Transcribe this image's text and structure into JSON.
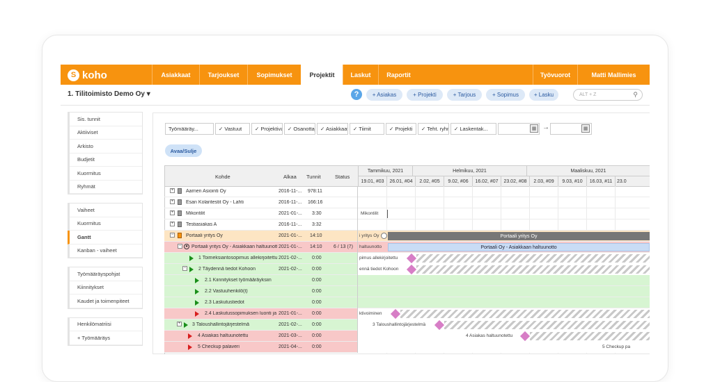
{
  "brand": {
    "name": "koho"
  },
  "nav": {
    "tabs": [
      {
        "label": "Asiakkaat"
      },
      {
        "label": "Tarjoukset"
      },
      {
        "label": "Sopimukset"
      },
      {
        "label": "Projektit"
      },
      {
        "label": "Laskut"
      },
      {
        "label": "Raportit"
      },
      {
        "label": "Työvuorot"
      },
      {
        "label": "Matti Mallimies"
      }
    ]
  },
  "subbar": {
    "company": "1. Tilitoimisto Demo Oy ▾",
    "help": "?",
    "quick": [
      {
        "label": "+ Asiakas"
      },
      {
        "label": "+ Projekti"
      },
      {
        "label": "+ Tarjous"
      },
      {
        "label": "+ Sopimus"
      },
      {
        "label": "+ Lasku"
      }
    ],
    "search_placeholder": "ALT + Z"
  },
  "sidebar": {
    "groups": [
      {
        "items": [
          {
            "label": "Sis. tunnit"
          },
          {
            "label": "Aktiiviset"
          },
          {
            "label": "Arkisto"
          },
          {
            "label": "Budjetit"
          },
          {
            "label": "Kuormitus"
          },
          {
            "label": "Ryhmät"
          }
        ]
      },
      {
        "items": [
          {
            "label": "Vaiheet"
          },
          {
            "label": "Kuormitus"
          },
          {
            "label": "Gantt",
            "active": true
          },
          {
            "label": "Kanban - vaiheet"
          }
        ]
      },
      {
        "items": [
          {
            "label": "Työmääräyspohjat"
          },
          {
            "label": "Kiinnitykset"
          },
          {
            "label": "Kaudet ja toimenpiteet"
          }
        ]
      },
      {
        "items": [
          {
            "label": "Henkilömatriisi"
          },
          {
            "label": "+ Työmääräys"
          }
        ]
      }
    ]
  },
  "filters": {
    "items": [
      {
        "label": "Työmääräy..."
      },
      {
        "label": "✓ Vastuut"
      },
      {
        "label": "✓ Projektivas..."
      },
      {
        "label": "✓ Osanottaja..."
      },
      {
        "label": "✓ Asiakkaat"
      },
      {
        "label": "✓ Tiimit"
      },
      {
        "label": "✓ Projekti"
      },
      {
        "label": "✓ Teht. ryhm..."
      },
      {
        "label": "✓ Laskentak..."
      }
    ],
    "arrow": "→",
    "toggle": "Avaa/Sulje"
  },
  "grid": {
    "columns": {
      "kohde": "Kohde",
      "alkaa": "Alkaa",
      "tunnit": "Tunnit",
      "status": "Status"
    },
    "months": [
      {
        "label": "Tammikuu, 2021"
      },
      {
        "label": "Helmikuu, 2021"
      },
      {
        "label": "Maaliskuu, 2021"
      }
    ],
    "weeks": [
      "19.01, #03",
      "26.01, #04",
      "2.02, #05",
      "9.02, #06",
      "16.02, #07",
      "23.02, #08",
      "2.03, #09",
      "9.03, #10",
      "16.03, #11",
      "23.0"
    ],
    "rows": [
      {
        "kohde": "Aarnen Asiointi Oy",
        "alkaa": "2016-11-...",
        "tunnit": "978:11",
        "status": ""
      },
      {
        "kohde": "Esan Kolaritestit Oy - Lahti",
        "alkaa": "2016-11-...",
        "tunnit": "166:16",
        "status": ""
      },
      {
        "kohde": "Mikontilit",
        "alkaa": "2021-01-...",
        "tunnit": "3:30",
        "status": "",
        "glabel": "Mikontilit"
      },
      {
        "kohde": "Testiasiakas A",
        "alkaa": "2016-11-...",
        "tunnit": "3:32",
        "status": ""
      },
      {
        "kohde": "Portaali yritys Oy",
        "alkaa": "2021-01-...",
        "tunnit": "14:10",
        "status": "",
        "glabel": "i yritys Oy",
        "bar": "Portaali yritys Oy"
      },
      {
        "kohde": "Portaali yritys Oy - Asiakkaan haltuunotto",
        "alkaa": "2021-01-...",
        "tunnit": "14:10",
        "status": "6 / 13 (7)",
        "glabel": "haltuunotto",
        "bar": "Portaali Oy - Asiakkaan haltuunotto"
      },
      {
        "kohde": "1 Toimeksiantosopimus allekirjoitettu",
        "alkaa": "2021-02-...",
        "tunnit": "0:00",
        "status": "",
        "glabel": "pimus allekirjoitettu"
      },
      {
        "kohde": "2 Täydennä tiedot Kohoon",
        "alkaa": "2021-02-...",
        "tunnit": "0:00",
        "status": "",
        "glabel": "ennä tiedot Kohoon"
      },
      {
        "kohde": "2.1 Kiinnitykset työmääräyksiin",
        "alkaa": "",
        "tunnit": "0:00",
        "status": ""
      },
      {
        "kohde": "2.2 Vastuuhenkilö(t)",
        "alkaa": "",
        "tunnit": "0:00",
        "status": ""
      },
      {
        "kohde": "2.3 Laskutustiedot",
        "alkaa": "",
        "tunnit": "0:00",
        "status": ""
      },
      {
        "kohde": "2.4 Laskutussopimuksen luonti ja lähetys",
        "alkaa": "2021-01-...",
        "tunnit": "0:00",
        "status": "",
        "glabel": "ktivoiminen"
      },
      {
        "kohde": "3 Taloushallintojärjestelmä",
        "alkaa": "2021-02-...",
        "tunnit": "0:00",
        "status": "",
        "glabel": "3 Taloushallintojärjestelmä"
      },
      {
        "kohde": "4 Asiakas haltuunotettu",
        "alkaa": "2021-03-...",
        "tunnit": "0:00",
        "status": "",
        "glabel": "4 Asiakas haltuunotettu"
      },
      {
        "kohde": "5 Checkup palaveri",
        "alkaa": "2021-04-...",
        "tunnit": "0:00",
        "status": "",
        "glabel": "5 Checkup pa"
      }
    ]
  }
}
